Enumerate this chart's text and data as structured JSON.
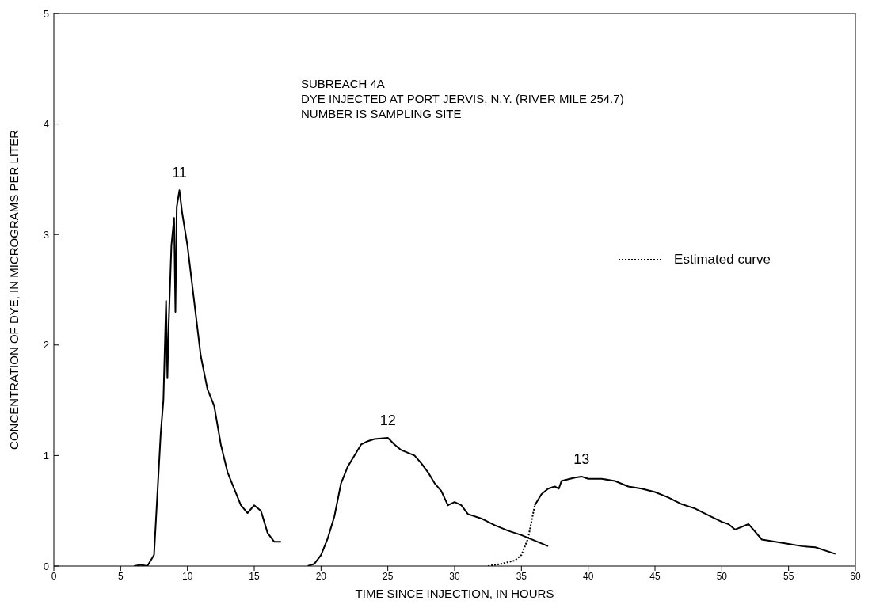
{
  "chart_data": {
    "type": "line",
    "xlabel": "TIME SINCE INJECTION, IN HOURS",
    "ylabel": "CONCENTRATION OF DYE, IN MICROGRAMS PER LITER",
    "xlim": [
      0,
      60
    ],
    "xticks": [
      0,
      5,
      10,
      15,
      20,
      25,
      30,
      35,
      40,
      45,
      50,
      55,
      60
    ],
    "ylim": [
      0,
      5
    ],
    "yticks": [
      0,
      1,
      2,
      3,
      4,
      5
    ],
    "legend": "right",
    "marker": "none",
    "annotations": [
      "SUBREACH 4A",
      "DYE INJECTED AT PORT JERVIS, N.Y. (RIVER MILE 254.7)",
      "NUMBER IS SAMPLING SITE",
      {
        "text": "11",
        "x": 9.4,
        "y": 3.4
      },
      {
        "text": "12",
        "x": 25,
        "y": 1.16
      },
      {
        "text": "13",
        "x": 39.5,
        "y": 0.81
      }
    ],
    "series": [
      {
        "color": "#000000",
        "line_style": "solid",
        "x": [
          6,
          6.5,
          7,
          7.5,
          8,
          8.2,
          8.4,
          8.5,
          8.6,
          8.8,
          9,
          9.1,
          9.2,
          9.4,
          9.5,
          9.6,
          10,
          10.5,
          11,
          11.5,
          12,
          12.5,
          13,
          13.5,
          14,
          14.5,
          15,
          15.5,
          16,
          16.5,
          17
        ],
        "values": [
          0,
          0.01,
          0,
          0.1,
          1.2,
          1.5,
          2.4,
          1.7,
          2.2,
          2.9,
          3.15,
          2.3,
          3.25,
          3.4,
          3.3,
          3.2,
          2.9,
          2.4,
          1.9,
          1.6,
          1.45,
          1.1,
          0.85,
          0.7,
          0.55,
          0.48,
          0.55,
          0.5,
          0.3,
          0.22,
          0.22
        ]
      },
      {
        "color": "#000000",
        "line_style": "solid",
        "x": [
          19,
          19.5,
          20,
          20.5,
          21,
          21.5,
          22,
          22.5,
          23,
          23.5,
          24,
          25,
          25.5,
          26,
          27,
          27.5,
          28,
          28.5,
          29,
          29.5,
          30,
          30.5,
          31,
          32,
          33,
          34,
          35,
          36,
          37
        ],
        "values": [
          0,
          0.02,
          0.1,
          0.25,
          0.45,
          0.75,
          0.9,
          1,
          1.1,
          1.13,
          1.15,
          1.16,
          1.1,
          1.05,
          1,
          0.93,
          0.85,
          0.75,
          0.68,
          0.55,
          0.58,
          0.55,
          0.47,
          0.43,
          0.37,
          0.32,
          0.28,
          0.23,
          0.18
        ]
      },
      {
        "name": "Estimated curve",
        "color": "#000000",
        "line_style": "dotted",
        "x": [
          32.5,
          33.5,
          34.5,
          35,
          35.5,
          36
        ],
        "values": [
          0,
          0.02,
          0.05,
          0.1,
          0.25,
          0.55
        ]
      },
      {
        "color": "#000000",
        "line_style": "solid",
        "x": [
          36,
          36.5,
          37,
          37.5,
          37.8,
          38,
          39,
          39.5,
          40,
          41,
          42,
          43,
          44,
          45,
          46,
          47,
          48,
          49,
          50,
          50.5,
          51,
          52,
          53,
          55,
          56,
          57,
          58.5
        ],
        "values": [
          0.55,
          0.65,
          0.7,
          0.72,
          0.7,
          0.77,
          0.8,
          0.81,
          0.79,
          0.79,
          0.77,
          0.72,
          0.7,
          0.67,
          0.62,
          0.56,
          0.52,
          0.46,
          0.4,
          0.38,
          0.33,
          0.38,
          0.24,
          0.2,
          0.18,
          0.17,
          0.11
        ]
      }
    ]
  }
}
